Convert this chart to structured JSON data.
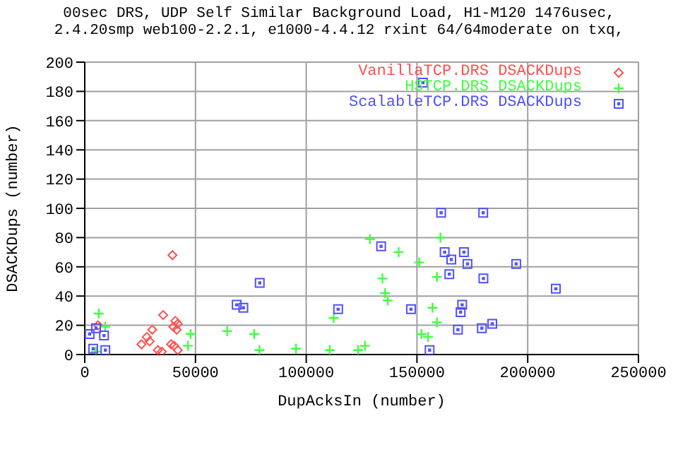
{
  "chart_data": {
    "type": "scatter",
    "title": "00sec DRS, UDP Self Similar Background Load, H1-M120 1476usec,",
    "subtitle": "2.4.20smp web100-2.2.1, e1000-4.4.12 rxint 64/64moderate on txq,",
    "xlabel": "DupAcksIn (number)",
    "ylabel": "DSACKDups (number)",
    "xlim": [
      0,
      250000
    ],
    "xticks": [
      0,
      50000,
      100000,
      150000,
      200000,
      250000
    ],
    "ylim": [
      0,
      200
    ],
    "yticks": [
      0,
      20,
      40,
      60,
      80,
      100,
      120,
      140,
      160,
      180,
      200
    ],
    "grid": true,
    "legend": "top right",
    "series": [
      {
        "name": "VanillaTCP.DRS DSACKDups",
        "color": "#ff5050",
        "marker": "diamond",
        "x": [
          39600,
          35400,
          40900,
          42000,
          30500,
          41500,
          40000,
          28000,
          29300,
          25600,
          33000,
          34800,
          39000,
          40300,
          42000,
          6000
        ],
        "values": [
          68,
          27,
          23,
          21,
          17,
          17,
          19,
          12,
          9,
          7,
          3,
          2,
          7,
          6,
          3,
          20
        ]
      },
      {
        "name": "HSTCP.DRS DSACKDups",
        "color": "#40ff40",
        "marker": "cross",
        "x": [
          6300,
          9200,
          47800,
          64300,
          76500,
          46600,
          78900,
          95400,
          110600,
          112400,
          128800,
          141700,
          151000,
          134400,
          135600,
          136800,
          123400,
          126500,
          160600,
          152000,
          155000,
          159000,
          157000,
          159000,
          5000
        ],
        "values": [
          28,
          19,
          14,
          16,
          14,
          6,
          3,
          4,
          3,
          25,
          79,
          70,
          63,
          52,
          42,
          37,
          3,
          6,
          80,
          14,
          12,
          22,
          32,
          53,
          2
        ]
      },
      {
        "name": "ScalableTCP.DRS DSACKDups",
        "color": "#5050ff",
        "marker": "square",
        "x": [
          152700,
          133800,
          162500,
          171200,
          165500,
          172800,
          194800,
          160900,
          179900,
          164600,
          79000,
          68600,
          71600,
          114400,
          147300,
          170400,
          169700,
          168500,
          179300,
          184000,
          212700,
          180000,
          155700,
          2200,
          5100,
          8700,
          3800,
          9300
        ],
        "values": [
          186,
          74,
          70,
          70,
          65,
          62,
          62,
          97,
          97,
          55,
          49,
          34,
          32,
          31,
          31,
          34,
          29,
          17,
          18,
          21,
          45,
          52,
          3,
          14,
          18,
          13,
          4,
          3
        ]
      }
    ]
  }
}
